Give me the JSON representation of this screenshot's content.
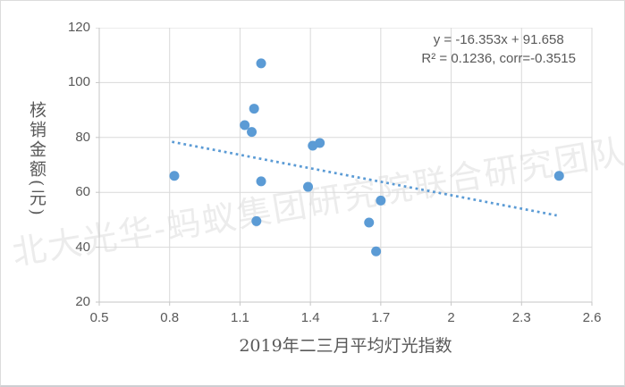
{
  "figure": {
    "background": "#ffffff",
    "border_color": "#dcdcdc"
  },
  "chart_data": {
    "type": "scatter",
    "title": "",
    "xlabel": "2019年二三月平均灯光指数",
    "ylabel": "核销金额(元)",
    "xlim": [
      0.5,
      2.6
    ],
    "ylim": [
      20,
      120
    ],
    "x_ticks": [
      0.5,
      0.8,
      1.1,
      1.4,
      1.7,
      2,
      2.3,
      2.6
    ],
    "x_tick_labels": [
      "0.5",
      "0.8",
      "1.1",
      "1.4",
      "1.7",
      "2",
      "2.3",
      "2.6"
    ],
    "y_ticks": [
      20,
      40,
      60,
      80,
      100,
      120
    ],
    "y_tick_labels": [
      "20",
      "40",
      "60",
      "80",
      "100",
      "120"
    ],
    "grid": true,
    "points": [
      [
        0.82,
        66
      ],
      [
        1.12,
        84.5
      ],
      [
        1.15,
        82
      ],
      [
        1.16,
        90.5
      ],
      [
        1.19,
        107
      ],
      [
        1.17,
        49.5
      ],
      [
        1.19,
        64
      ],
      [
        1.39,
        62
      ],
      [
        1.41,
        77
      ],
      [
        1.44,
        78
      ],
      [
        1.65,
        49
      ],
      [
        1.68,
        38.5
      ],
      [
        1.7,
        57
      ],
      [
        2.46,
        66
      ]
    ],
    "trendline": {
      "slope": -16.353,
      "intercept": 91.658,
      "x_start": 0.81,
      "x_end": 2.45,
      "style": "dotted"
    },
    "annotation": {
      "line1": "y = -16.353x + 91.658",
      "line2": "R² = 0.1236, corr=-0.3515"
    },
    "colors": {
      "point": "#5b9bd5",
      "trend": "#5b9bd5",
      "grid": "#d9d9d9",
      "frame": "#c6c6c6",
      "axis_text": "#595959"
    },
    "legend": null
  },
  "watermark": {
    "text": "北大光华-蚂蚁集团研究院联合研究团队",
    "color": "#ececec"
  }
}
